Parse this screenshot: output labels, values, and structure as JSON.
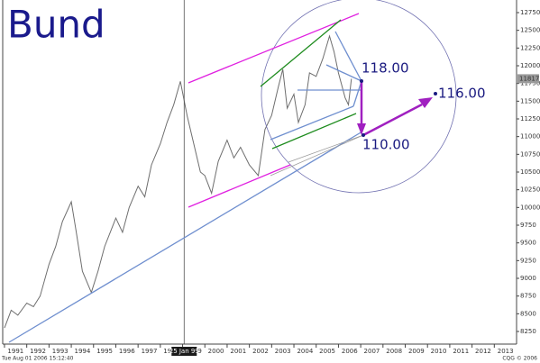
{
  "chart_data": {
    "type": "line",
    "title": "Bund",
    "x": [
      1991.0,
      1991.3,
      1991.6,
      1992.0,
      1992.3,
      1992.6,
      1993.0,
      1993.3,
      1993.6,
      1994.0,
      1994.2,
      1994.5,
      1994.9,
      1995.2,
      1995.5,
      1996.0,
      1996.3,
      1996.6,
      1997.0,
      1997.3,
      1997.6,
      1998.0,
      1998.3,
      1998.6,
      1998.9,
      1999.2,
      1999.5,
      1999.8,
      2000.0,
      2000.3,
      2000.6,
      2001.0,
      2001.3,
      2001.6,
      2002.0,
      2002.4,
      2002.7,
      2003.0,
      2003.3,
      2003.5,
      2003.7,
      2004.0,
      2004.2,
      2004.5,
      2004.7,
      2005.0,
      2005.3,
      2005.6,
      2005.8,
      2006.0,
      2006.3,
      2006.45,
      2006.58
    ],
    "values": [
      8300,
      8550,
      8480,
      8650,
      8600,
      8750,
      9200,
      9450,
      9800,
      10080,
      9700,
      9100,
      8800,
      9100,
      9450,
      9850,
      9650,
      10000,
      10300,
      10150,
      10600,
      10900,
      11200,
      11450,
      11780,
      11300,
      10900,
      10500,
      10450,
      10200,
      10650,
      10950,
      10700,
      10850,
      10600,
      10450,
      11100,
      11300,
      11700,
      11950,
      11400,
      11600,
      11200,
      11450,
      11900,
      11850,
      12100,
      12420,
      12200,
      11900,
      11550,
      11450,
      11817
    ],
    "color": "#6e6e6e",
    "xlim": [
      1990.92,
      2014.0
    ],
    "xticks": [
      1991,
      1992,
      1993,
      1994,
      1995,
      1996,
      1997,
      1998,
      1999,
      2000,
      2001,
      2002,
      2003,
      2004,
      2005,
      2006,
      2007,
      2008,
      2009,
      2010,
      2011,
      2012,
      2013
    ],
    "ylim": [
      8072,
      12928
    ],
    "yticks": [
      8250,
      8500,
      8750,
      9000,
      9250,
      9500,
      9750,
      10000,
      10250,
      10500,
      10750,
      11000,
      11250,
      11500,
      11750,
      12000,
      12250,
      12500,
      12750
    ],
    "current_price": 11817,
    "crosshair": {
      "x": 1999.07,
      "label": "25 Jan 99"
    },
    "annotations": [
      "118.00",
      "116.00",
      "110.00"
    ],
    "timestamp": "Tue Aug 01 2006 15:12:40",
    "credit": "CQG © 2006"
  }
}
